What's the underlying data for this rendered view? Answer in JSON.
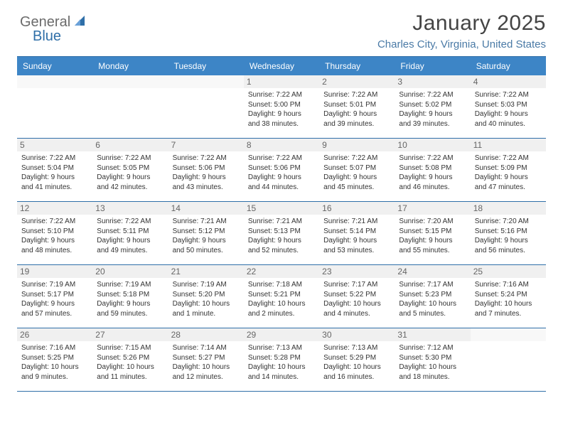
{
  "logo": {
    "text1": "General",
    "text2": "Blue"
  },
  "title": "January 2025",
  "location": "Charles City, Virginia, United States",
  "colors": {
    "header_bg": "#3d85c6",
    "accent": "#2f6fa8",
    "daynum_bg": "#f0f0f0",
    "text": "#333333",
    "subtitle": "#4a7aa6"
  },
  "dayNames": [
    "Sunday",
    "Monday",
    "Tuesday",
    "Wednesday",
    "Thursday",
    "Friday",
    "Saturday"
  ],
  "weeks": [
    [
      {
        "n": "",
        "sunrise": "",
        "sunset": "",
        "daylight": ""
      },
      {
        "n": "",
        "sunrise": "",
        "sunset": "",
        "daylight": ""
      },
      {
        "n": "",
        "sunrise": "",
        "sunset": "",
        "daylight": ""
      },
      {
        "n": "1",
        "sunrise": "Sunrise: 7:22 AM",
        "sunset": "Sunset: 5:00 PM",
        "daylight": "Daylight: 9 hours and 38 minutes."
      },
      {
        "n": "2",
        "sunrise": "Sunrise: 7:22 AM",
        "sunset": "Sunset: 5:01 PM",
        "daylight": "Daylight: 9 hours and 39 minutes."
      },
      {
        "n": "3",
        "sunrise": "Sunrise: 7:22 AM",
        "sunset": "Sunset: 5:02 PM",
        "daylight": "Daylight: 9 hours and 39 minutes."
      },
      {
        "n": "4",
        "sunrise": "Sunrise: 7:22 AM",
        "sunset": "Sunset: 5:03 PM",
        "daylight": "Daylight: 9 hours and 40 minutes."
      }
    ],
    [
      {
        "n": "5",
        "sunrise": "Sunrise: 7:22 AM",
        "sunset": "Sunset: 5:04 PM",
        "daylight": "Daylight: 9 hours and 41 minutes."
      },
      {
        "n": "6",
        "sunrise": "Sunrise: 7:22 AM",
        "sunset": "Sunset: 5:05 PM",
        "daylight": "Daylight: 9 hours and 42 minutes."
      },
      {
        "n": "7",
        "sunrise": "Sunrise: 7:22 AM",
        "sunset": "Sunset: 5:06 PM",
        "daylight": "Daylight: 9 hours and 43 minutes."
      },
      {
        "n": "8",
        "sunrise": "Sunrise: 7:22 AM",
        "sunset": "Sunset: 5:06 PM",
        "daylight": "Daylight: 9 hours and 44 minutes."
      },
      {
        "n": "9",
        "sunrise": "Sunrise: 7:22 AM",
        "sunset": "Sunset: 5:07 PM",
        "daylight": "Daylight: 9 hours and 45 minutes."
      },
      {
        "n": "10",
        "sunrise": "Sunrise: 7:22 AM",
        "sunset": "Sunset: 5:08 PM",
        "daylight": "Daylight: 9 hours and 46 minutes."
      },
      {
        "n": "11",
        "sunrise": "Sunrise: 7:22 AM",
        "sunset": "Sunset: 5:09 PM",
        "daylight": "Daylight: 9 hours and 47 minutes."
      }
    ],
    [
      {
        "n": "12",
        "sunrise": "Sunrise: 7:22 AM",
        "sunset": "Sunset: 5:10 PM",
        "daylight": "Daylight: 9 hours and 48 minutes."
      },
      {
        "n": "13",
        "sunrise": "Sunrise: 7:22 AM",
        "sunset": "Sunset: 5:11 PM",
        "daylight": "Daylight: 9 hours and 49 minutes."
      },
      {
        "n": "14",
        "sunrise": "Sunrise: 7:21 AM",
        "sunset": "Sunset: 5:12 PM",
        "daylight": "Daylight: 9 hours and 50 minutes."
      },
      {
        "n": "15",
        "sunrise": "Sunrise: 7:21 AM",
        "sunset": "Sunset: 5:13 PM",
        "daylight": "Daylight: 9 hours and 52 minutes."
      },
      {
        "n": "16",
        "sunrise": "Sunrise: 7:21 AM",
        "sunset": "Sunset: 5:14 PM",
        "daylight": "Daylight: 9 hours and 53 minutes."
      },
      {
        "n": "17",
        "sunrise": "Sunrise: 7:20 AM",
        "sunset": "Sunset: 5:15 PM",
        "daylight": "Daylight: 9 hours and 55 minutes."
      },
      {
        "n": "18",
        "sunrise": "Sunrise: 7:20 AM",
        "sunset": "Sunset: 5:16 PM",
        "daylight": "Daylight: 9 hours and 56 minutes."
      }
    ],
    [
      {
        "n": "19",
        "sunrise": "Sunrise: 7:19 AM",
        "sunset": "Sunset: 5:17 PM",
        "daylight": "Daylight: 9 hours and 57 minutes."
      },
      {
        "n": "20",
        "sunrise": "Sunrise: 7:19 AM",
        "sunset": "Sunset: 5:18 PM",
        "daylight": "Daylight: 9 hours and 59 minutes."
      },
      {
        "n": "21",
        "sunrise": "Sunrise: 7:19 AM",
        "sunset": "Sunset: 5:20 PM",
        "daylight": "Daylight: 10 hours and 1 minute."
      },
      {
        "n": "22",
        "sunrise": "Sunrise: 7:18 AM",
        "sunset": "Sunset: 5:21 PM",
        "daylight": "Daylight: 10 hours and 2 minutes."
      },
      {
        "n": "23",
        "sunrise": "Sunrise: 7:17 AM",
        "sunset": "Sunset: 5:22 PM",
        "daylight": "Daylight: 10 hours and 4 minutes."
      },
      {
        "n": "24",
        "sunrise": "Sunrise: 7:17 AM",
        "sunset": "Sunset: 5:23 PM",
        "daylight": "Daylight: 10 hours and 5 minutes."
      },
      {
        "n": "25",
        "sunrise": "Sunrise: 7:16 AM",
        "sunset": "Sunset: 5:24 PM",
        "daylight": "Daylight: 10 hours and 7 minutes."
      }
    ],
    [
      {
        "n": "26",
        "sunrise": "Sunrise: 7:16 AM",
        "sunset": "Sunset: 5:25 PM",
        "daylight": "Daylight: 10 hours and 9 minutes."
      },
      {
        "n": "27",
        "sunrise": "Sunrise: 7:15 AM",
        "sunset": "Sunset: 5:26 PM",
        "daylight": "Daylight: 10 hours and 11 minutes."
      },
      {
        "n": "28",
        "sunrise": "Sunrise: 7:14 AM",
        "sunset": "Sunset: 5:27 PM",
        "daylight": "Daylight: 10 hours and 12 minutes."
      },
      {
        "n": "29",
        "sunrise": "Sunrise: 7:13 AM",
        "sunset": "Sunset: 5:28 PM",
        "daylight": "Daylight: 10 hours and 14 minutes."
      },
      {
        "n": "30",
        "sunrise": "Sunrise: 7:13 AM",
        "sunset": "Sunset: 5:29 PM",
        "daylight": "Daylight: 10 hours and 16 minutes."
      },
      {
        "n": "31",
        "sunrise": "Sunrise: 7:12 AM",
        "sunset": "Sunset: 5:30 PM",
        "daylight": "Daylight: 10 hours and 18 minutes."
      },
      {
        "n": "",
        "sunrise": "",
        "sunset": "",
        "daylight": ""
      }
    ]
  ]
}
